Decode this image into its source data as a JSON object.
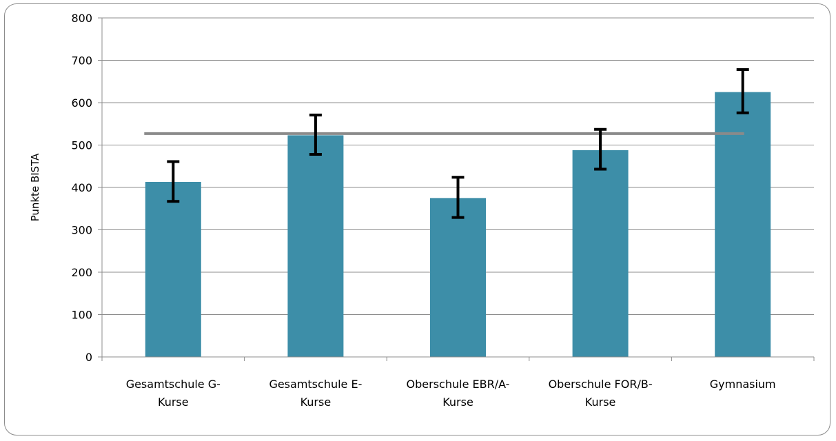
{
  "chart_data": {
    "type": "bar",
    "title": "",
    "xlabel": "",
    "ylabel": "Punkte BISTA",
    "ylim": [
      0,
      800
    ],
    "yticks": [
      0,
      100,
      200,
      300,
      400,
      500,
      600,
      700,
      800
    ],
    "categories": [
      [
        "Gesamtschule G-",
        "Kurse"
      ],
      [
        "Gesamtschule E-",
        "Kurse"
      ],
      [
        "Oberschule EBR/A-",
        "Kurse"
      ],
      [
        "Oberschule FOR/B-",
        "Kurse"
      ],
      [
        "Gymnasium"
      ]
    ],
    "values": [
      413,
      523,
      375,
      488,
      625
    ],
    "error_low": [
      367,
      478,
      329,
      443,
      576
    ],
    "error_high": [
      461,
      571,
      424,
      537,
      678
    ],
    "reference_line": 527,
    "grid": true,
    "colors": {
      "bar": "#3d8ea8",
      "error": "#000000",
      "reference": "#8a8a8a",
      "grid": "#8c8c8c"
    }
  }
}
